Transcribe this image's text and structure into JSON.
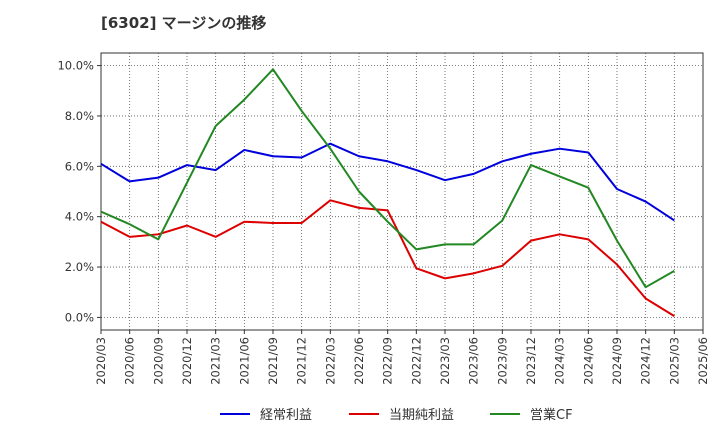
{
  "title": "[6302]  マージンの推移",
  "chart_data": {
    "type": "line",
    "title": "[6302]  マージンの推移",
    "xlabel": "",
    "ylabel": "",
    "ylim": [
      -0.5,
      10.5
    ],
    "y_ticks": [
      0.0,
      2.0,
      4.0,
      6.0,
      8.0,
      10.0
    ],
    "y_tick_labels": [
      "0.0%",
      "2.0%",
      "4.0%",
      "6.0%",
      "8.0%",
      "10.0%"
    ],
    "x_ticks": [
      "2020/03",
      "2020/06",
      "2020/09",
      "2020/12",
      "2021/03",
      "2021/06",
      "2021/09",
      "2021/12",
      "2022/03",
      "2022/06",
      "2022/09",
      "2022/12",
      "2023/03",
      "2023/06",
      "2023/09",
      "2023/12",
      "2024/03",
      "2024/06",
      "2024/09",
      "2024/12",
      "2025/03",
      "2025/06"
    ],
    "grid": true,
    "legend_position": "bottom",
    "series": [
      {
        "name": "経常利益",
        "color": "#0000dd",
        "values": [
          6.1,
          5.4,
          5.55,
          6.05,
          5.85,
          6.65,
          6.4,
          6.35,
          6.9,
          6.4,
          6.2,
          5.85,
          5.45,
          5.7,
          6.2,
          6.5,
          6.7,
          6.55,
          5.1,
          4.6,
          3.85
        ]
      },
      {
        "name": "当期純利益",
        "color": "#dd0000",
        "values": [
          3.8,
          3.2,
          3.3,
          3.65,
          3.2,
          3.8,
          3.75,
          3.75,
          4.65,
          4.35,
          4.25,
          1.95,
          1.55,
          1.75,
          2.05,
          3.05,
          3.3,
          3.1,
          2.1,
          0.75,
          0.05
        ]
      },
      {
        "name": "営業CF",
        "color": "#228822",
        "values": [
          4.2,
          3.7,
          3.1,
          5.35,
          7.6,
          8.65,
          9.85,
          8.2,
          6.7,
          5.0,
          3.8,
          2.7,
          2.9,
          2.9,
          3.85,
          6.05,
          5.6,
          5.15,
          3.05,
          1.2,
          1.85
        ]
      }
    ]
  }
}
